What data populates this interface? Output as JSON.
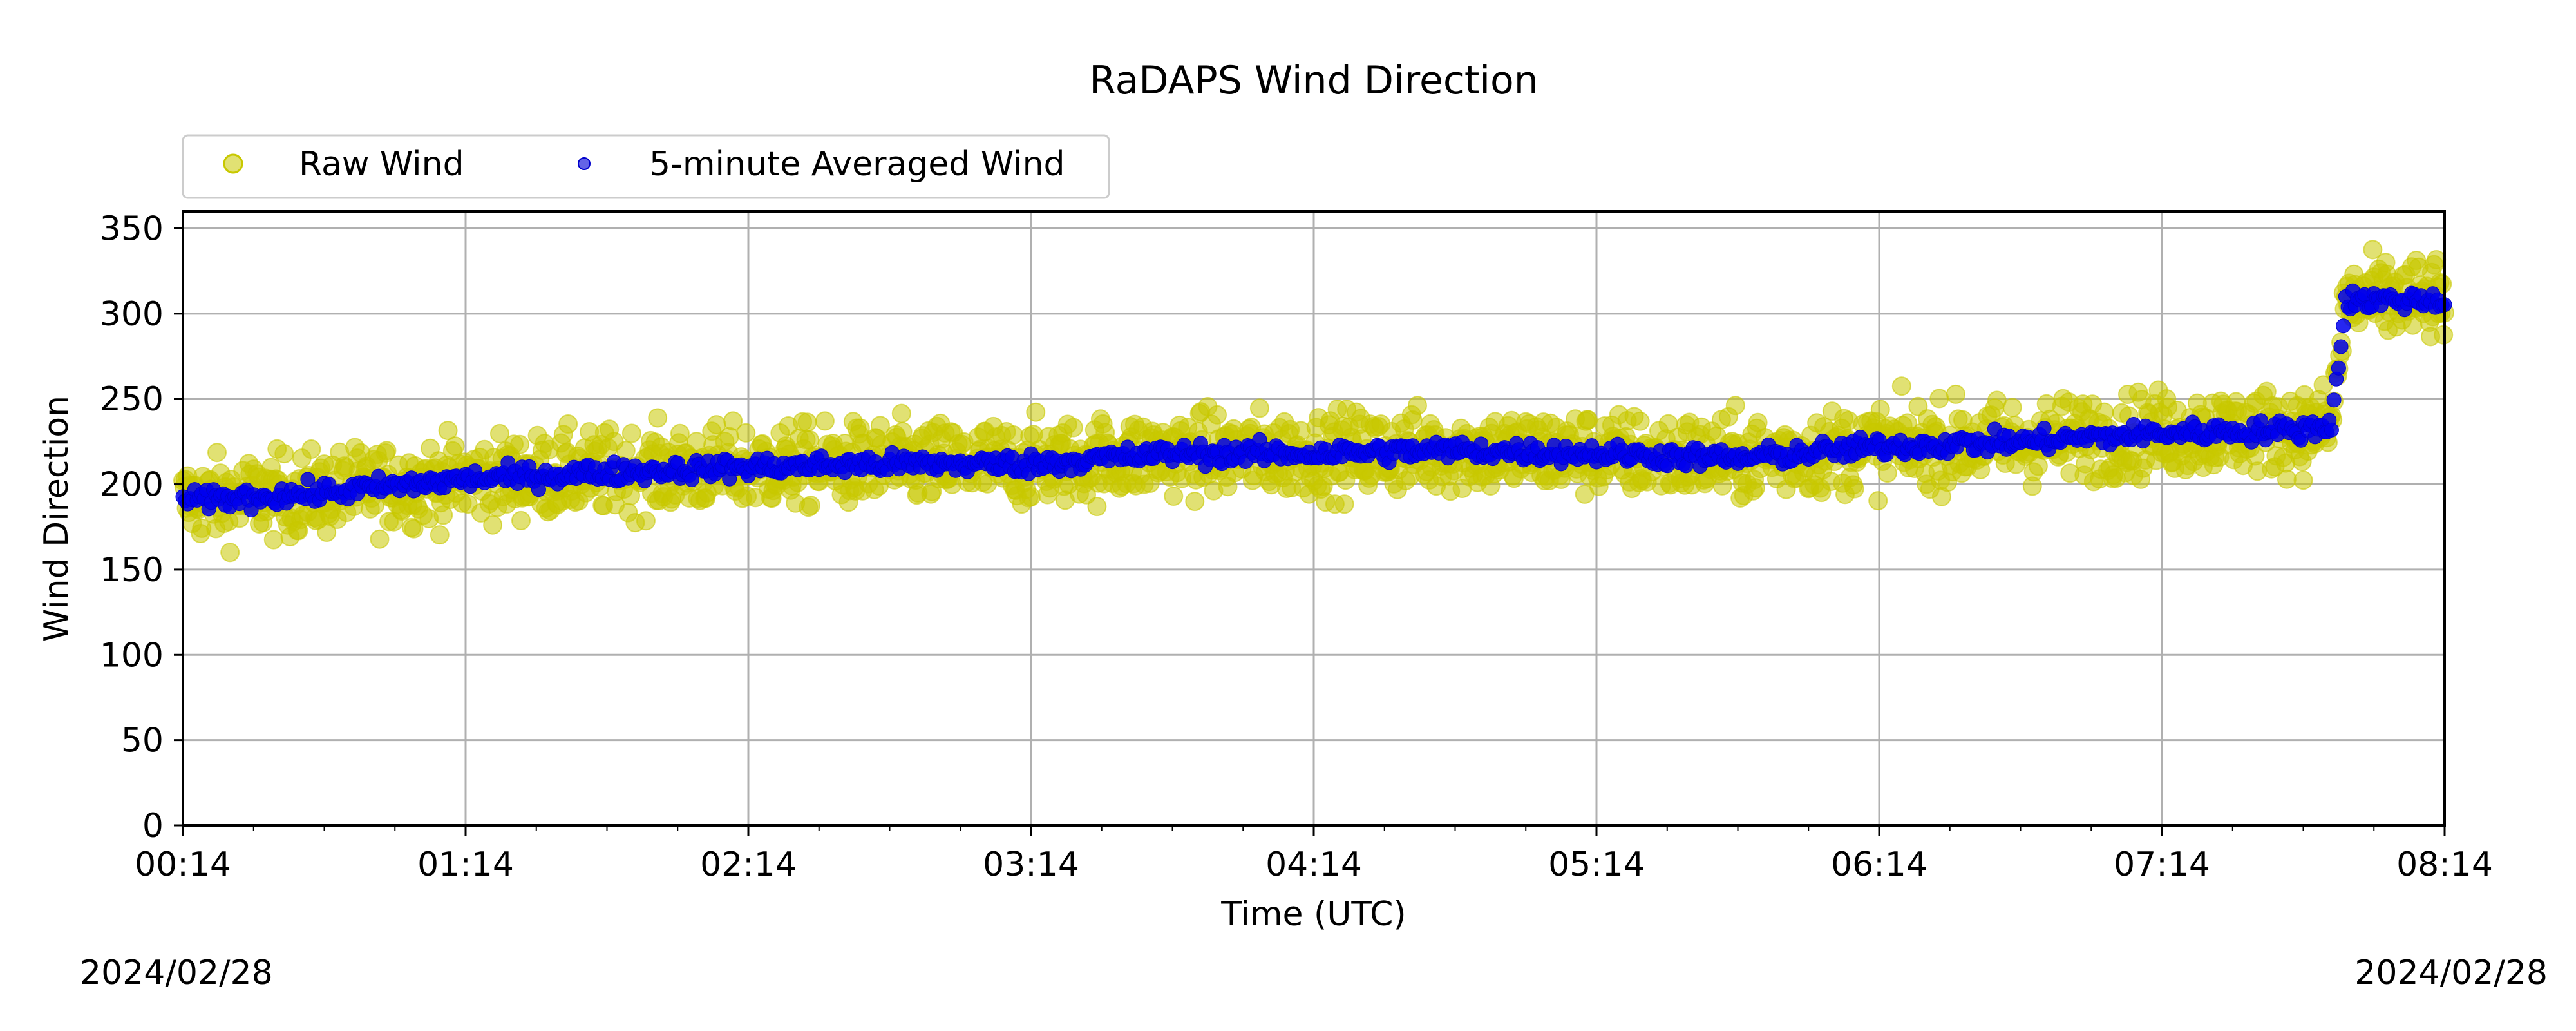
{
  "chart_data": {
    "type": "scatter",
    "title": "RaDAPS Wind Direction",
    "xlabel": "Time (UTC)",
    "ylabel": "Wind Direction",
    "x_range": [
      "00:14",
      "08:14"
    ],
    "x_ticks": [
      "00:14",
      "01:14",
      "02:14",
      "03:14",
      "04:14",
      "05:14",
      "06:14",
      "07:14",
      "08:14"
    ],
    "ylim": [
      0,
      360
    ],
    "y_ticks": [
      0,
      50,
      100,
      150,
      200,
      250,
      300,
      350
    ],
    "grid": true,
    "legend_position": "top-left",
    "series": [
      {
        "name": "Raw Wind",
        "marker": "circle",
        "color": "#c8c800",
        "spread": 12,
        "x": [
          "00:14",
          "00:44",
          "01:14",
          "01:44",
          "02:14",
          "02:44",
          "03:14",
          "03:44",
          "04:14",
          "04:44",
          "05:14",
          "05:44",
          "06:14",
          "06:44",
          "07:14",
          "07:44",
          "07:50",
          "07:53",
          "08:14"
        ],
        "values": [
          190,
          195,
          203,
          207,
          210,
          212,
          212,
          218,
          218,
          220,
          218,
          215,
          222,
          225,
          230,
          232,
          235,
          308,
          308
        ]
      },
      {
        "name": "5-minute Averaged Wind",
        "marker": "circle",
        "color": "#0000ee",
        "x": [
          "00:14",
          "00:44",
          "01:14",
          "01:44",
          "02:14",
          "02:44",
          "03:14",
          "03:44",
          "04:14",
          "04:44",
          "05:14",
          "05:44",
          "06:14",
          "06:44",
          "07:14",
          "07:44",
          "07:50",
          "07:53",
          "08:14"
        ],
        "values": [
          190,
          195,
          203,
          207,
          210,
          212,
          212,
          218,
          218,
          220,
          218,
          215,
          222,
          225,
          230,
          232,
          235,
          308,
          308
        ]
      }
    ],
    "annotations": {
      "start_date": "2024/02/28",
      "end_date": "2024/02/28"
    }
  }
}
